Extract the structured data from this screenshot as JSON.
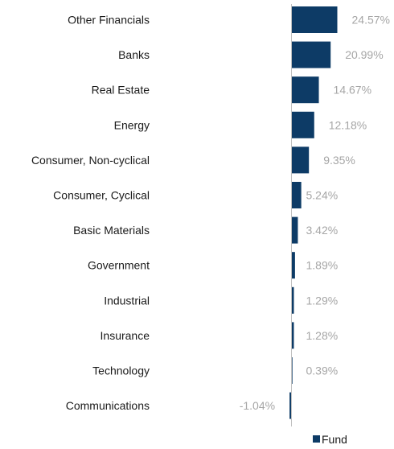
{
  "chart_data": {
    "type": "bar",
    "orientation": "horizontal",
    "categories": [
      "Other Financials",
      "Banks",
      "Real Estate",
      "Energy",
      "Consumer, Non-cyclical",
      "Consumer, Cyclical",
      "Basic Materials",
      "Government",
      "Industrial",
      "Insurance",
      "Technology",
      "Communications"
    ],
    "series": [
      {
        "name": "Fund",
        "color": "#0d3b66",
        "values": [
          24.57,
          20.99,
          14.67,
          12.18,
          9.35,
          5.24,
          3.42,
          1.89,
          1.29,
          1.28,
          0.39,
          -1.04
        ],
        "labels": [
          "24.57%",
          "20.99%",
          "14.67%",
          "12.18%",
          "9.35%",
          "5.24%",
          "3.42%",
          "1.89%",
          "1.29%",
          "1.28%",
          "0.39%",
          "-1.04%"
        ]
      }
    ],
    "title": "",
    "xlabel": "",
    "ylabel": "",
    "grid": false,
    "legend_position": "bottom-right",
    "axis_color": "#bfbfbf",
    "label_color": "#a6a6a6"
  }
}
